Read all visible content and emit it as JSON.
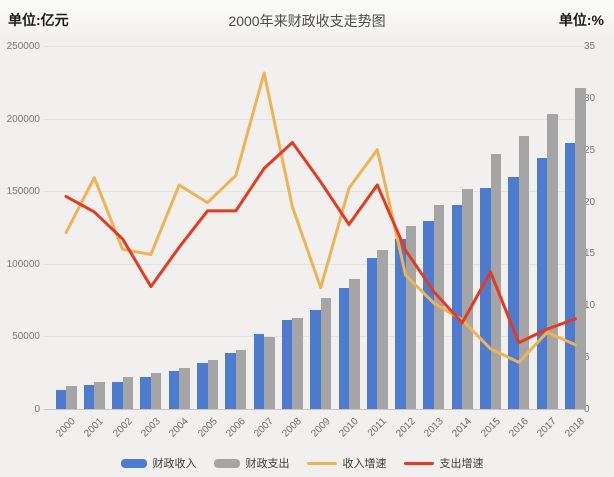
{
  "header": {
    "unit_left": "单位:亿元",
    "title": "2000年来财政收支走势图",
    "unit_right": "单位:%"
  },
  "chart_data": {
    "type": "bar",
    "subtype": "dual-axis bar+line combo",
    "title": "2000年来财政收支走势图",
    "categories": [
      "2000",
      "2001",
      "2002",
      "2003",
      "2004",
      "2005",
      "2006",
      "2007",
      "2008",
      "2009",
      "2010",
      "2011",
      "2012",
      "2013",
      "2014",
      "2015",
      "2016",
      "2017",
      "2018"
    ],
    "series": [
      {
        "name": "财政收入",
        "type": "bar",
        "axis": "left",
        "color": "#4d7bd0",
        "values": [
          13395,
          16386,
          18904,
          21715,
          26396,
          31649,
          38760,
          51322,
          61330,
          68518,
          83102,
          103874,
          117254,
          129210,
          140370,
          152269,
          159605,
          172593,
          183352
        ]
      },
      {
        "name": "财政支出",
        "type": "bar",
        "axis": "left",
        "color": "#a5a5a5",
        "values": [
          15887,
          18903,
          22012,
          24650,
          28487,
          33930,
          40423,
          49781,
          62593,
          76300,
          89874,
          109248,
          125953,
          140212,
          151786,
          175878,
          187755,
          203085,
          220906
        ]
      },
      {
        "name": "收入增速",
        "type": "line",
        "axis": "right",
        "color": "#eeb357",
        "values": [
          17.0,
          22.3,
          15.4,
          14.9,
          21.6,
          19.9,
          22.5,
          32.4,
          19.5,
          11.7,
          21.3,
          25.0,
          12.9,
          10.2,
          8.6,
          5.8,
          4.5,
          7.4,
          6.2
        ]
      },
      {
        "name": "支出增速",
        "type": "line",
        "axis": "right",
        "color": "#e43b20",
        "values": [
          20.5,
          19.0,
          16.4,
          11.8,
          15.6,
          19.1,
          19.1,
          23.2,
          25.7,
          21.9,
          17.8,
          21.6,
          15.3,
          11.3,
          8.3,
          13.2,
          6.4,
          7.7,
          8.7
        ]
      }
    ],
    "left_axis": {
      "unit": "亿元",
      "min": 0,
      "max": 250000,
      "ticks": [
        0,
        50000,
        100000,
        150000,
        200000,
        250000
      ]
    },
    "right_axis": {
      "unit": "%",
      "min": 0,
      "max": 35,
      "ticks": [
        0,
        5,
        10,
        15,
        20,
        25,
        30,
        35
      ]
    },
    "grid": true,
    "legend_position": "bottom"
  }
}
